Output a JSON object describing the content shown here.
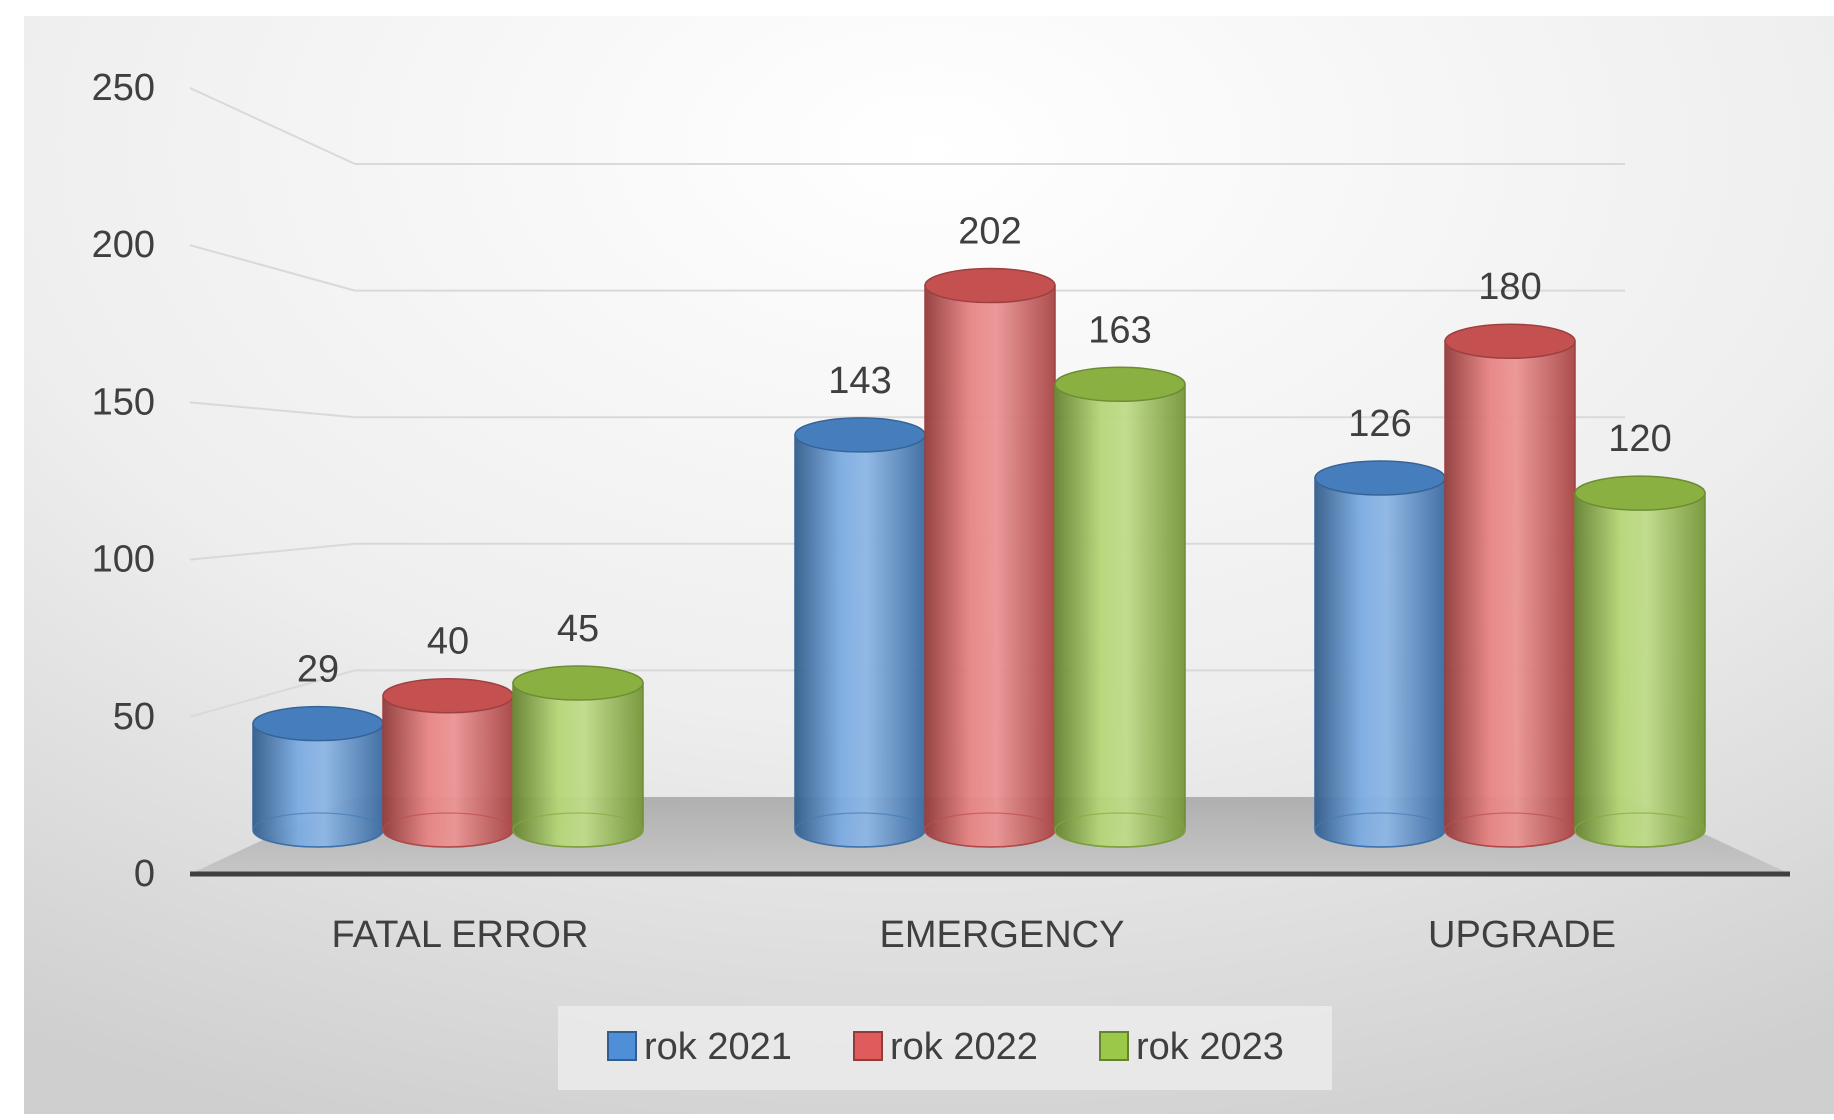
{
  "chart_data": {
    "type": "bar",
    "style": "3d-cylinder",
    "title": "",
    "xlabel": "",
    "ylabel": "",
    "categories": [
      "FATAL ERROR",
      "EMERGENCY",
      "UPGRADE"
    ],
    "ylim": [
      0,
      250
    ],
    "yticks": [
      0,
      50,
      100,
      150,
      200,
      250
    ],
    "grid": true,
    "legend_position": "bottom",
    "series": [
      {
        "name": "rok 2021",
        "values": [
          29,
          143,
          126
        ],
        "color": "#4f8fd7"
      },
      {
        "name": "rok 2022",
        "values": [
          40,
          202,
          180
        ],
        "color": "#e05b5b"
      },
      {
        "name": "rok 2023",
        "values": [
          45,
          163,
          120
        ],
        "color": "#9cc84a"
      }
    ]
  }
}
